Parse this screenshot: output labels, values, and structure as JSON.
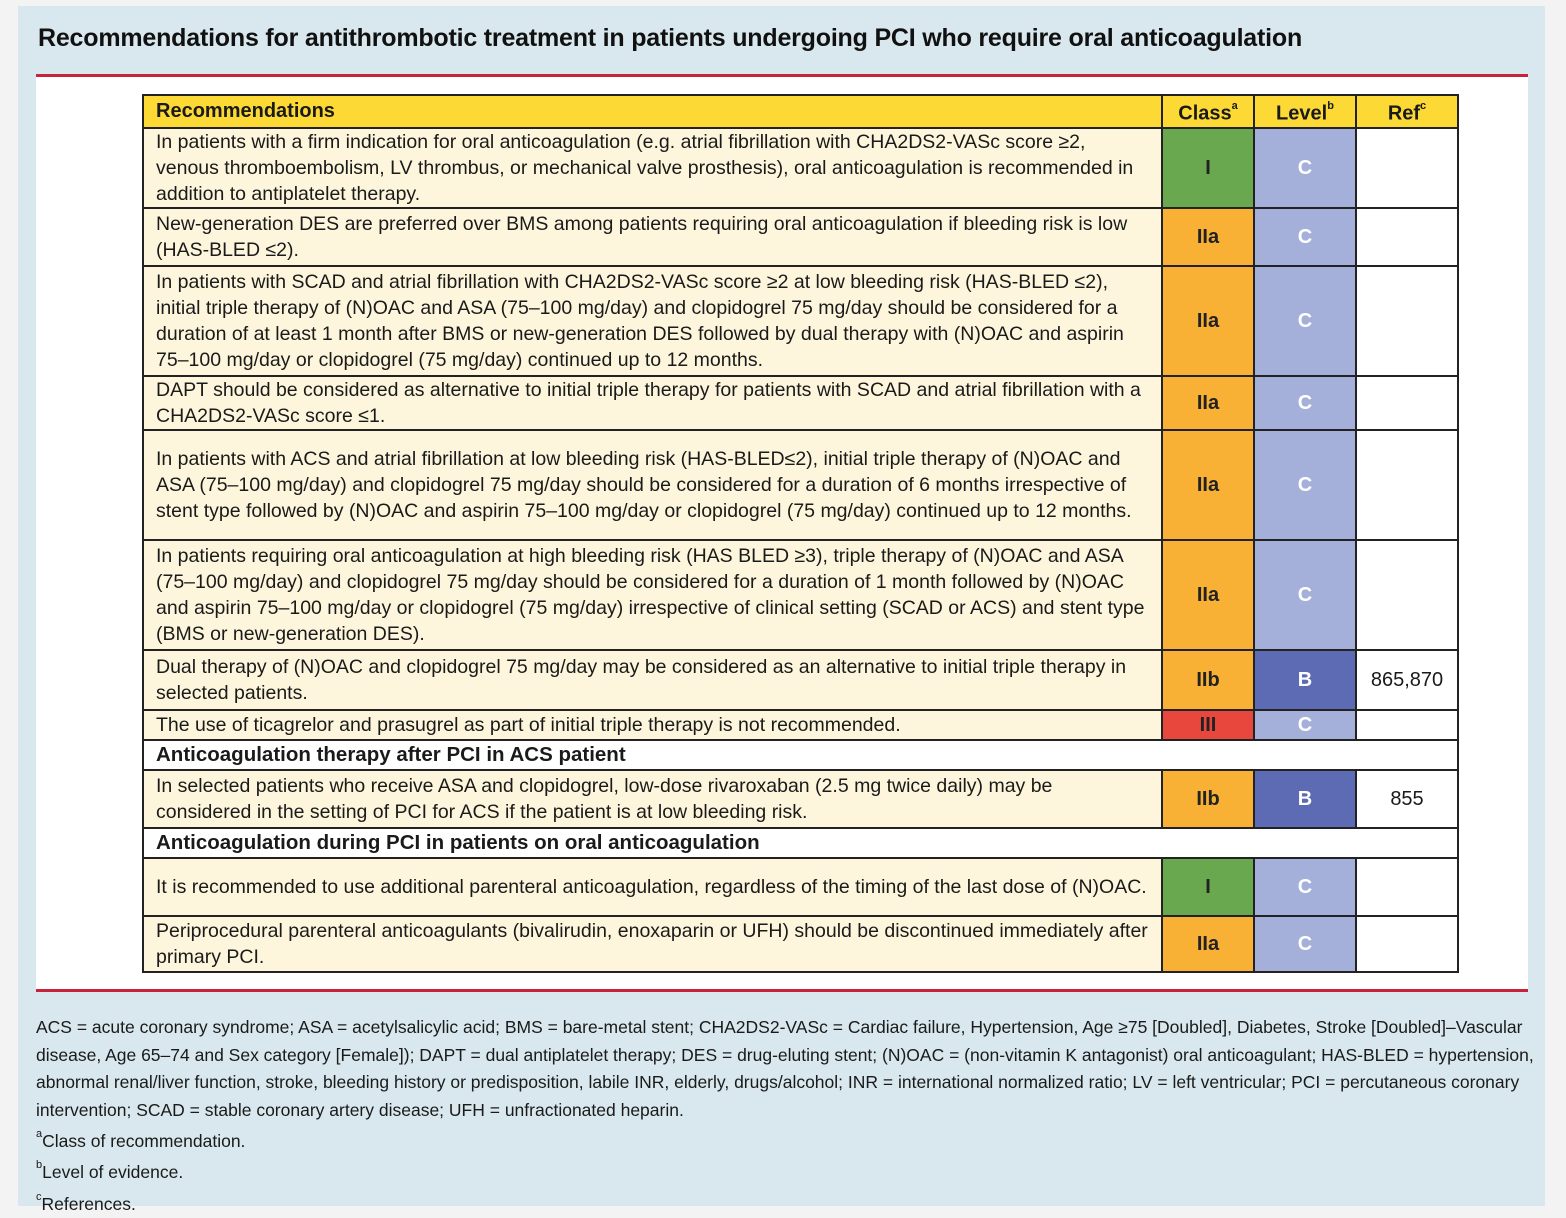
{
  "title": "Recommendations for antithrombotic treatment in patients undergoing PCI who require oral anticoagulation",
  "colors": {
    "class_I": "#6aa84f",
    "class_IIa": "#f8b134",
    "class_IIb": "#f8b134",
    "class_III": "#e8473d",
    "level_C": "#a4b0d9",
    "level_B": "#5c6bb3",
    "header": "#fcd934",
    "row_bg": "#fdf6dc",
    "rule": "#c8233c"
  },
  "header": {
    "recommendations": "Recommendations",
    "class": "Class",
    "class_sup": "a",
    "level": "Level",
    "level_sup": "b",
    "ref": "Ref",
    "ref_sup": "c"
  },
  "rows": [
    {
      "type": "rec",
      "text": "In patients with a firm indication for oral anticoagulation (e.g. atrial fibrillation with CHA2DS2-VASc score ≥2, venous thromboembolism, LV thrombus, or mechanical valve prosthesis), oral anticoagulation is recommended in addition to antiplatelet therapy.",
      "class": "I",
      "level": "C",
      "ref": ""
    },
    {
      "type": "rec",
      "text": "New-generation DES are preferred over BMS among patients requiring oral anticoagulation if bleeding risk is low (HAS-BLED ≤2).",
      "class": "IIa",
      "level": "C",
      "ref": ""
    },
    {
      "type": "rec",
      "text": "In patients with SCAD and atrial fibrillation with CHA2DS2-VASc score ≥2 at low bleeding risk (HAS-BLED ≤2), initial triple therapy of (N)OAC and ASA (75–100 mg/day) and clopidogrel 75 mg/day should be considered for a duration of at least 1 month after BMS or new-generation DES followed by dual therapy with (N)OAC and aspirin 75–100 mg/day or clopidogrel (75 mg/day) continued up to 12 months.",
      "class": "IIa",
      "level": "C",
      "ref": ""
    },
    {
      "type": "rec",
      "text": "DAPT should be considered as alternative to initial triple therapy for patients with SCAD and atrial fibrillation with a CHA2DS2-VASc score ≤1.",
      "class": "IIa",
      "level": "C",
      "ref": ""
    },
    {
      "type": "rec",
      "text": "In patients with ACS and atrial fibrillation at low bleeding risk (HAS-BLED≤2), initial triple therapy of (N)OAC and ASA (75–100 mg/day) and clopidogrel 75 mg/day should be considered for a duration of 6 months irrespective of stent type followed by (N)OAC and aspirin 75–100 mg/day or clopidogrel (75 mg/day) continued up to 12 months.",
      "class": "IIa",
      "level": "C",
      "ref": ""
    },
    {
      "type": "rec",
      "text": "In patients requiring oral anticoagulation at high bleeding risk (HAS BLED ≥3), triple therapy of (N)OAC and ASA (75–100 mg/day) and clopidogrel 75 mg/day should be considered for a duration of 1 month followed by (N)OAC and aspirin 75–100 mg/day or clopidogrel (75 mg/day) irrespective of clinical setting (SCAD or ACS) and stent type (BMS or new-generation DES).",
      "class": "IIa",
      "level": "C",
      "ref": ""
    },
    {
      "type": "rec",
      "text": "Dual therapy of (N)OAC and clopidogrel 75 mg/day may be considered as an alternative to initial triple therapy in selected patients.",
      "class": "IIb",
      "level": "B",
      "ref": "865,870"
    },
    {
      "type": "rec",
      "text": "The use of ticagrelor and prasugrel as part of initial triple therapy is not recommended.",
      "class": "III",
      "level": "C",
      "ref": ""
    },
    {
      "type": "section",
      "text": "Anticoagulation therapy after PCI in ACS patient"
    },
    {
      "type": "rec",
      "text": "In selected patients who receive ASA and clopidogrel, low-dose rivaroxaban (2.5  mg twice daily) may be considered in the setting of PCI for ACS if the patient is at low bleeding risk.",
      "class": "IIb",
      "level": "B",
      "ref": "855"
    },
    {
      "type": "section",
      "text": "Anticoagulation during PCI in patients on oral anticoagulation"
    },
    {
      "type": "rec",
      "text": "It is recommended to use additional parenteral anticoagulation, regardless of the timing of the last dose of (N)OAC.",
      "class": "I",
      "level": "C",
      "ref": ""
    },
    {
      "type": "rec",
      "text": "Periprocedural parenteral anticoagulants (bivalirudin, enoxaparin or UFH) should be discontinued immediately after primary PCI.",
      "class": "IIa",
      "level": "C",
      "ref": ""
    }
  ],
  "footer": {
    "abbreviations": "ACS = acute coronary syndrome; ASA = acetylsalicylic acid; BMS = bare-metal stent; CHA2DS2-VASc = Cardiac failure, Hypertension, Age ≥75 [Doubled], Diabetes, Stroke [Doubled]–Vascular disease, Age 65–74 and Sex category [Female]); DAPT = dual antiplatelet therapy; DES = drug-eluting stent; (N)OAC = (non-vitamin K antagonist) oral anticoagulant; HAS-BLED = hypertension, abnormal renal/liver function, stroke, bleeding history or predisposition, labile INR, elderly, drugs/alcohol; INR = international normalized ratio; LV = left ventricular; PCI = percutaneous coronary intervention; SCAD = stable coronary artery disease; UFH = unfractionated heparin.",
    "notes": [
      {
        "mark": "a",
        "text": "Class of recommendation."
      },
      {
        "mark": "b",
        "text": "Level of evidence."
      },
      {
        "mark": "c",
        "text": "References."
      }
    ]
  }
}
